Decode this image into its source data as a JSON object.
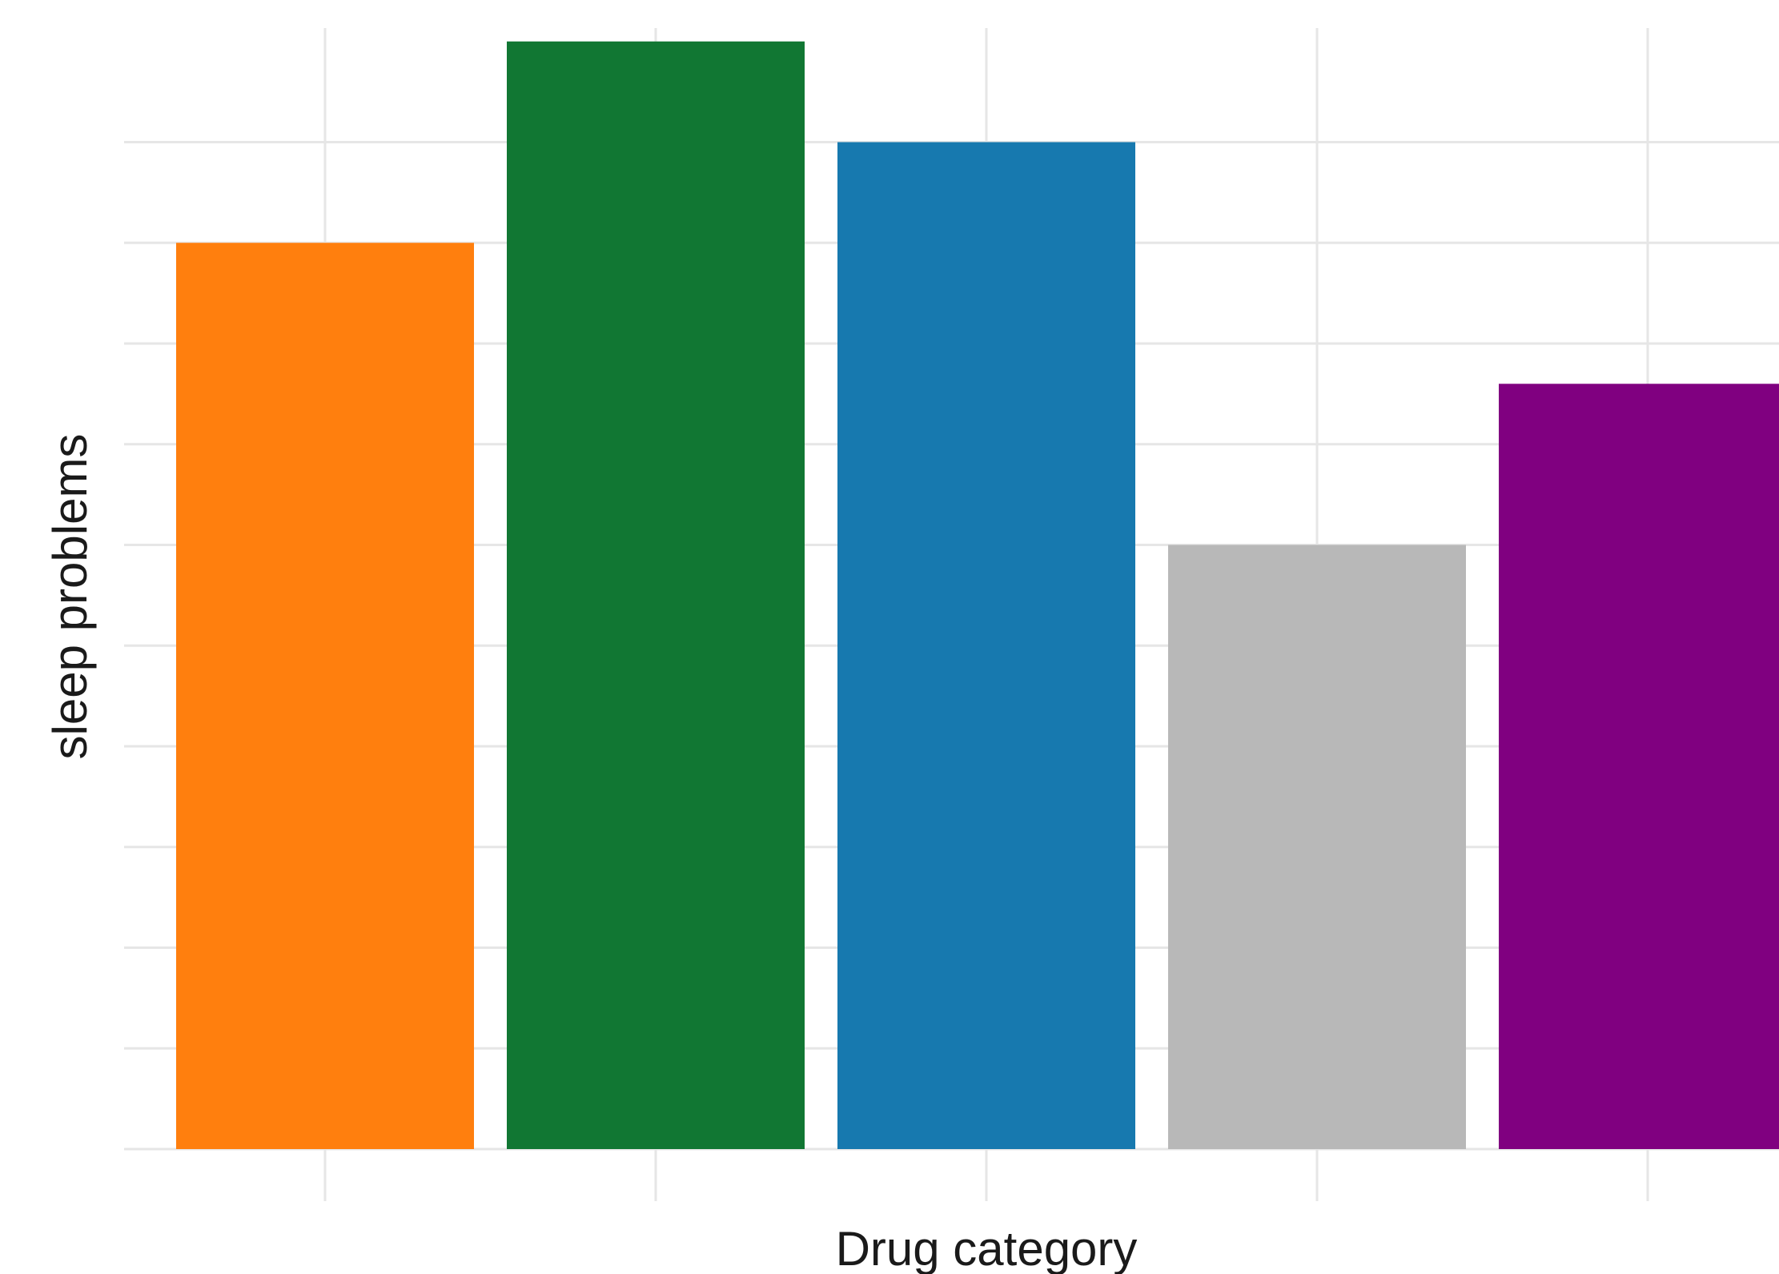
{
  "chart_data": {
    "type": "bar",
    "title": "",
    "xlabel": "Drug category",
    "ylabel": "sleep problems",
    "ylim": [
      0,
      5.6
    ],
    "yticks": [
      0,
      1,
      2,
      3,
      4,
      5
    ],
    "grid": true,
    "legend": "none",
    "categories": [
      "",
      "",
      "",
      "",
      ""
    ],
    "values": [
      4.5,
      5.5,
      5.0,
      3.0,
      3.8
    ],
    "colors": [
      "#FF7F0E",
      "#117733",
      "#1779AF",
      "#B8B8B8",
      "#800080"
    ]
  }
}
